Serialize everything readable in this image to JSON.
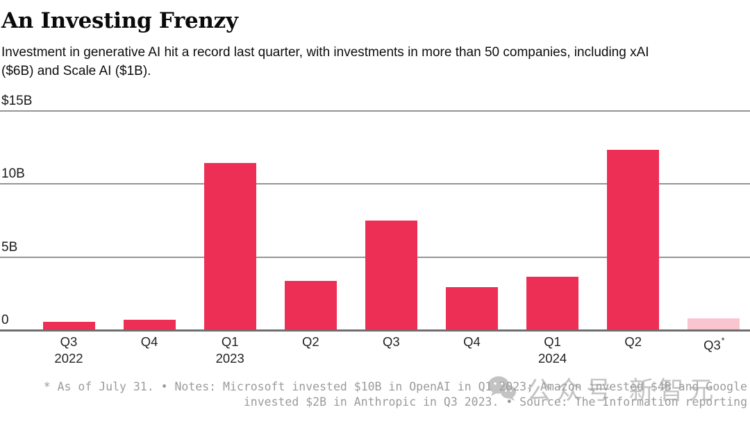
{
  "header": {
    "title": "An Investing Frenzy",
    "subtitle_line1": "Investment in generative AI hit a record last quarter, with investments in more than 50 companies, including xAI",
    "subtitle_line2": "($6B) and Scale AI ($1B)."
  },
  "chart_data": {
    "type": "bar",
    "title": "An Investing Frenzy",
    "subtitle": "Investment in generative AI hit a record last quarter, with investments in more than 50 companies, including xAI ($6B) and Scale AI ($1B).",
    "unit": "USD billions",
    "xlabel": "",
    "ylabel": "",
    "ylim": [
      0,
      15
    ],
    "grid": true,
    "legend": false,
    "yticks": [
      {
        "value": 15,
        "label": "$15B"
      },
      {
        "value": 10,
        "label": "10B"
      },
      {
        "value": 5,
        "label": "5B"
      },
      {
        "value": 0,
        "label": "0"
      }
    ],
    "categories": [
      "Q3 2022",
      "Q4 2022",
      "Q1 2023",
      "Q2 2023",
      "Q3 2023",
      "Q4 2023",
      "Q1 2024",
      "Q2 2024",
      "Q3 2024*"
    ],
    "values": [
      0.5,
      0.65,
      11.4,
      3.3,
      7.45,
      2.9,
      3.6,
      12.3,
      0.75
    ],
    "bar_colors": [
      "#ee2f55",
      "#ee2f55",
      "#ee2f55",
      "#ee2f55",
      "#ee2f55",
      "#ee2f55",
      "#ee2f55",
      "#ee2f55",
      "#f9c6d0"
    ],
    "x_tick_lines": [
      [
        "Q3",
        "2022"
      ],
      [
        "Q4",
        ""
      ],
      [
        "Q1",
        "2023"
      ],
      [
        "Q2",
        ""
      ],
      [
        "Q3",
        ""
      ],
      [
        "Q4",
        ""
      ],
      [
        "Q1",
        "2024"
      ],
      [
        "Q2",
        ""
      ],
      [
        "Q3*",
        ""
      ]
    ],
    "annotations": [
      "* As of July 31."
    ]
  },
  "footer": {
    "line1": "* As of July 31. • Notes: Microsoft invested $10B in OpenAI in Q1 2023; Amazon invested $4B and Google",
    "line2": "invested $2B in Anthropic in Q3 2023. • Source: The Information reporting"
  },
  "watermark": {
    "text": "公众号 新智元"
  },
  "colors": {
    "bar": "#ee2f55",
    "bar_muted": "#f9c6d0",
    "grid": "#949494",
    "axis": "#6e6e6e",
    "footer_text": "#9a9a9a",
    "watermark": "#9f9f9f"
  }
}
